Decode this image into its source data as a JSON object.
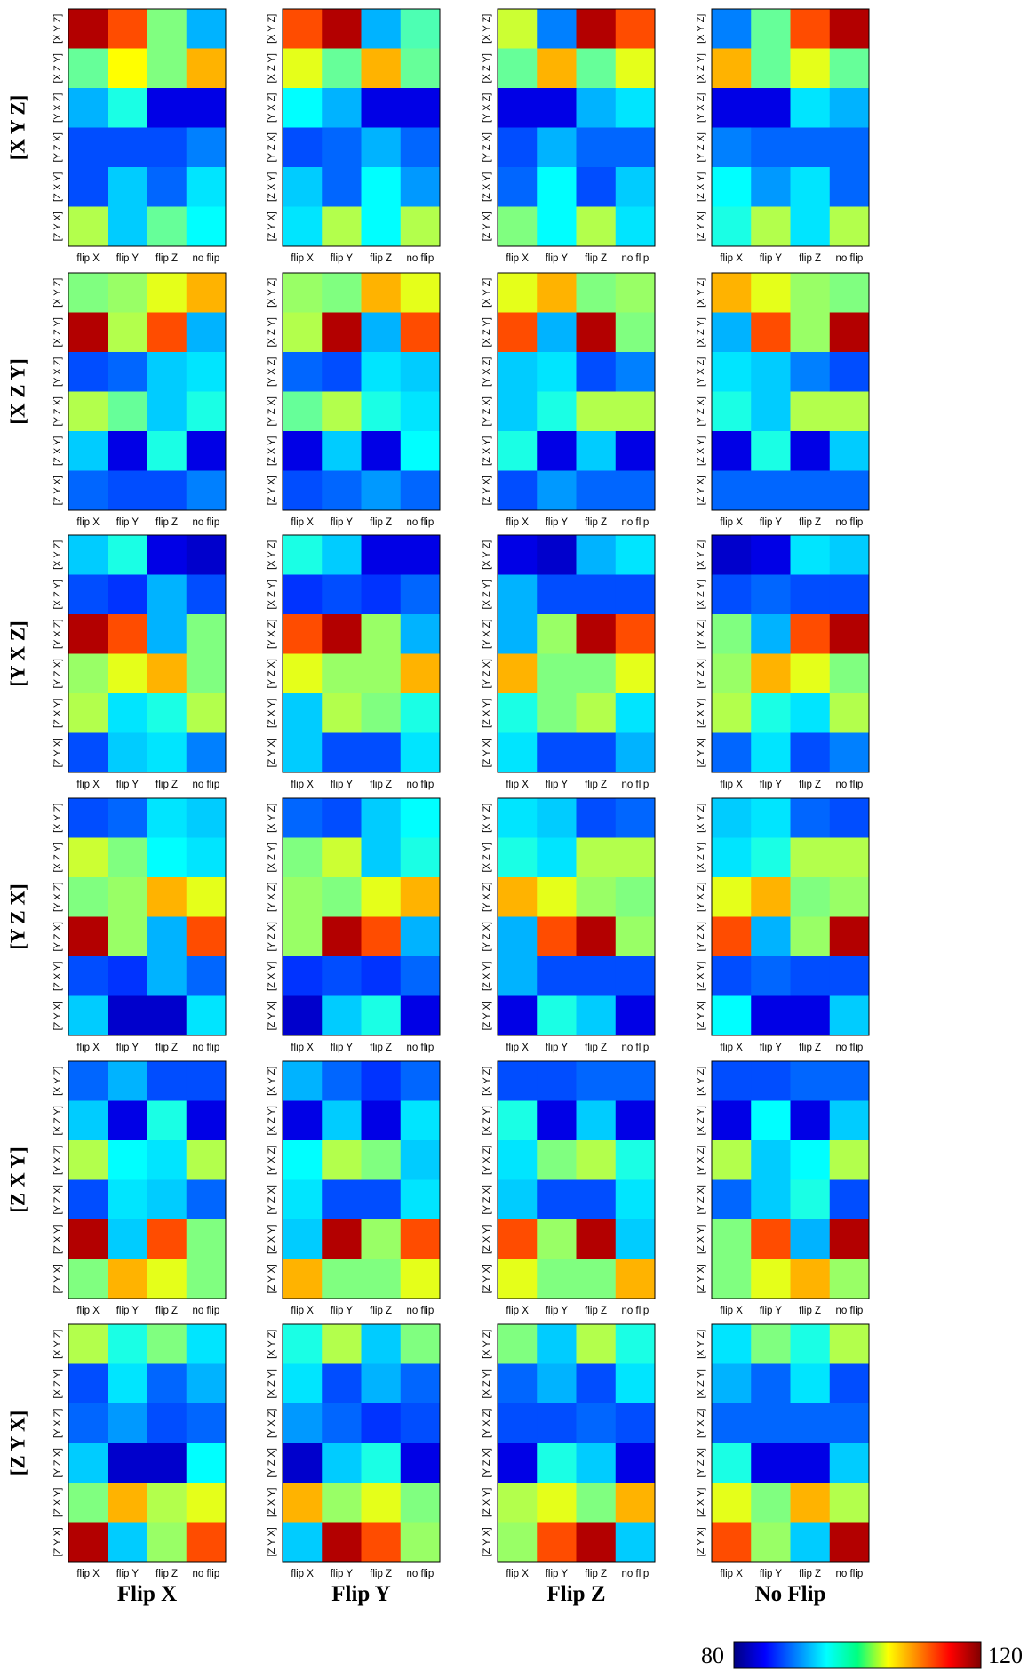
{
  "chart_data": {
    "type": "heatmap",
    "row_titles": [
      "[X Y Z]",
      "[X Z Y]",
      "[Y X Z]",
      "[Y Z X]",
      "[Z X Y]",
      "[Z Y X]"
    ],
    "col_titles": [
      "Flip X",
      "Flip Y",
      "Flip Z",
      "No Flip"
    ],
    "x_ticks": [
      "flip X",
      "flip Y",
      "flip Z",
      "no flip"
    ],
    "y_ticks": [
      "[X Y Z]",
      "[X Z Y]",
      "[Y X Z]",
      "[Y Z X]",
      "[Z X Y]",
      "[Z Y X]"
    ],
    "colorbar": {
      "min": 80,
      "max": 120,
      "min_label": "80",
      "max_label": "120",
      "colormap": "jet"
    },
    "panels": [
      [
        [
          [
            118,
            112,
            100,
            92
          ],
          [
            99,
            105,
            100,
            108
          ],
          [
            92,
            96,
            84,
            84
          ],
          [
            88,
            88,
            88,
            90
          ],
          [
            88,
            93,
            89,
            94
          ],
          [
            102,
            93,
            99,
            95
          ]
        ],
        [
          [
            112,
            118,
            92,
            98
          ],
          [
            104,
            99,
            108,
            99
          ],
          [
            95,
            92,
            84,
            84
          ],
          [
            88,
            89,
            92,
            89
          ],
          [
            93,
            89,
            95,
            91
          ],
          [
            94,
            102,
            95,
            102
          ]
        ],
        [
          [
            103,
            90,
            118,
            112
          ],
          [
            99,
            108,
            99,
            104
          ],
          [
            84,
            84,
            92,
            94
          ],
          [
            88,
            92,
            89,
            89
          ],
          [
            89,
            95,
            88,
            93
          ],
          [
            100,
            95,
            102,
            94
          ]
        ],
        [
          [
            90,
            99,
            112,
            118
          ],
          [
            108,
            99,
            104,
            99
          ],
          [
            84,
            84,
            94,
            92
          ],
          [
            90,
            89,
            89,
            89
          ],
          [
            95,
            91,
            94,
            89
          ],
          [
            96,
            102,
            94,
            102
          ]
        ]
      ],
      [
        [
          [
            100,
            101,
            104,
            108
          ],
          [
            118,
            102,
            112,
            92
          ],
          [
            88,
            89,
            93,
            94
          ],
          [
            102,
            99,
            93,
            96
          ],
          [
            93,
            84,
            96,
            84
          ],
          [
            89,
            88,
            88,
            90
          ]
        ],
        [
          [
            101,
            100,
            108,
            104
          ],
          [
            102,
            118,
            92,
            112
          ],
          [
            89,
            88,
            94,
            93
          ],
          [
            99,
            102,
            96,
            94
          ],
          [
            84,
            93,
            84,
            95
          ],
          [
            88,
            89,
            91,
            89
          ]
        ],
        [
          [
            104,
            108,
            100,
            101
          ],
          [
            112,
            92,
            118,
            100
          ],
          [
            93,
            94,
            88,
            90
          ],
          [
            93,
            96,
            102,
            102
          ],
          [
            96,
            84,
            93,
            84
          ],
          [
            88,
            91,
            89,
            89
          ]
        ],
        [
          [
            108,
            104,
            101,
            100
          ],
          [
            92,
            112,
            101,
            118
          ],
          [
            94,
            93,
            90,
            88
          ],
          [
            96,
            93,
            102,
            102
          ],
          [
            84,
            96,
            84,
            93
          ],
          [
            89,
            89,
            89,
            89
          ]
        ]
      ],
      [
        [
          [
            93,
            96,
            84,
            83
          ],
          [
            88,
            87,
            92,
            88
          ],
          [
            118,
            112,
            92,
            100
          ],
          [
            101,
            104,
            108,
            100
          ],
          [
            102,
            94,
            96,
            102
          ],
          [
            88,
            93,
            94,
            90
          ]
        ],
        [
          [
            96,
            93,
            84,
            84
          ],
          [
            87,
            88,
            87,
            89
          ],
          [
            112,
            118,
            101,
            92
          ],
          [
            104,
            101,
            101,
            108
          ],
          [
            93,
            102,
            100,
            96
          ],
          [
            93,
            88,
            88,
            94
          ]
        ],
        [
          [
            84,
            83,
            92,
            94
          ],
          [
            92,
            88,
            88,
            88
          ],
          [
            92,
            101,
            118,
            112
          ],
          [
            108,
            100,
            100,
            104
          ],
          [
            96,
            100,
            102,
            94
          ],
          [
            94,
            88,
            88,
            92
          ]
        ],
        [
          [
            83,
            84,
            94,
            93
          ],
          [
            88,
            89,
            88,
            88
          ],
          [
            100,
            92,
            112,
            118
          ],
          [
            101,
            108,
            104,
            100
          ],
          [
            102,
            96,
            94,
            102
          ],
          [
            89,
            94,
            88,
            90
          ]
        ]
      ],
      [
        [
          [
            88,
            89,
            94,
            93
          ],
          [
            103,
            100,
            95,
            94
          ],
          [
            100,
            101,
            108,
            104
          ],
          [
            118,
            101,
            92,
            112
          ],
          [
            88,
            87,
            92,
            89
          ],
          [
            93,
            83,
            83,
            94
          ]
        ],
        [
          [
            89,
            88,
            93,
            95
          ],
          [
            100,
            103,
            93,
            96
          ],
          [
            101,
            100,
            104,
            108
          ],
          [
            101,
            118,
            112,
            92
          ],
          [
            87,
            88,
            87,
            89
          ],
          [
            83,
            93,
            96,
            84
          ]
        ],
        [
          [
            94,
            93,
            88,
            89
          ],
          [
            96,
            94,
            102,
            102
          ],
          [
            108,
            104,
            101,
            100
          ],
          [
            92,
            112,
            118,
            101
          ],
          [
            92,
            88,
            88,
            88
          ],
          [
            84,
            96,
            93,
            84
          ]
        ],
        [
          [
            93,
            94,
            89,
            88
          ],
          [
            94,
            96,
            102,
            102
          ],
          [
            104,
            108,
            100,
            101
          ],
          [
            112,
            92,
            101,
            118
          ],
          [
            88,
            89,
            88,
            88
          ],
          [
            95,
            84,
            84,
            93
          ]
        ]
      ],
      [
        [
          [
            89,
            92,
            88,
            88
          ],
          [
            93,
            84,
            96,
            84
          ],
          [
            102,
            95,
            94,
            102
          ],
          [
            88,
            94,
            93,
            89
          ],
          [
            118,
            93,
            112,
            100
          ],
          [
            100,
            108,
            104,
            100
          ]
        ],
        [
          [
            92,
            89,
            87,
            89
          ],
          [
            84,
            93,
            84,
            94
          ],
          [
            95,
            102,
            100,
            93
          ],
          [
            94,
            88,
            88,
            94
          ],
          [
            93,
            118,
            101,
            112
          ],
          [
            108,
            100,
            100,
            104
          ]
        ],
        [
          [
            88,
            88,
            89,
            89
          ],
          [
            96,
            84,
            93,
            84
          ],
          [
            94,
            100,
            102,
            96
          ],
          [
            93,
            88,
            88,
            94
          ],
          [
            112,
            101,
            118,
            93
          ],
          [
            104,
            100,
            100,
            108
          ]
        ],
        [
          [
            88,
            88,
            89,
            89
          ],
          [
            84,
            95,
            84,
            93
          ],
          [
            102,
            93,
            95,
            102
          ],
          [
            89,
            93,
            96,
            88
          ],
          [
            100,
            112,
            92,
            118
          ],
          [
            100,
            104,
            108,
            101
          ]
        ]
      ],
      [
        [
          [
            102,
            96,
            100,
            94
          ],
          [
            88,
            94,
            89,
            92
          ],
          [
            89,
            91,
            88,
            89
          ],
          [
            93,
            83,
            83,
            95
          ],
          [
            100,
            108,
            102,
            104
          ],
          [
            118,
            93,
            101,
            112
          ]
        ],
        [
          [
            96,
            102,
            93,
            100
          ],
          [
            94,
            88,
            92,
            89
          ],
          [
            91,
            89,
            87,
            88
          ],
          [
            83,
            93,
            96,
            84
          ],
          [
            108,
            101,
            104,
            100
          ],
          [
            93,
            118,
            112,
            101
          ]
        ],
        [
          [
            100,
            93,
            102,
            96
          ],
          [
            89,
            92,
            88,
            94
          ],
          [
            88,
            88,
            89,
            88
          ],
          [
            84,
            96,
            93,
            84
          ],
          [
            102,
            104,
            100,
            108
          ],
          [
            101,
            112,
            118,
            93
          ]
        ],
        [
          [
            94,
            100,
            96,
            102
          ],
          [
            92,
            89,
            94,
            88
          ],
          [
            89,
            89,
            89,
            89
          ],
          [
            96,
            84,
            84,
            93
          ],
          [
            104,
            100,
            108,
            102
          ],
          [
            112,
            101,
            93,
            118
          ]
        ]
      ]
    ]
  }
}
